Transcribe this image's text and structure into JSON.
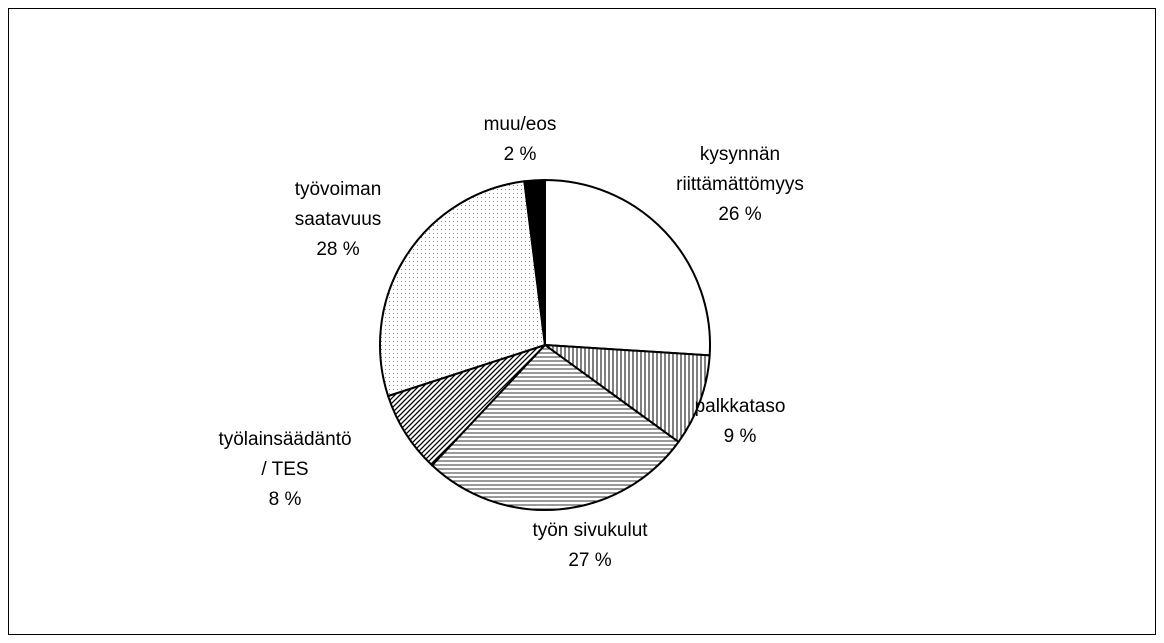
{
  "chart_data": {
    "type": "pie",
    "categories": [
      [
        "kysynnän",
        "riittämättömyys"
      ],
      [
        "palkkataso"
      ],
      [
        "työn sivukulut"
      ],
      [
        "työlainsäädäntö",
        "/ TES"
      ],
      [
        "työvoiman",
        "saatavuus"
      ],
      [
        "muu/eos"
      ]
    ],
    "values": [
      26,
      9,
      27,
      8,
      28,
      2
    ],
    "value_labels": [
      "26 %",
      "9 %",
      "27 %",
      "8 %",
      "28 %",
      "2 %"
    ]
  }
}
